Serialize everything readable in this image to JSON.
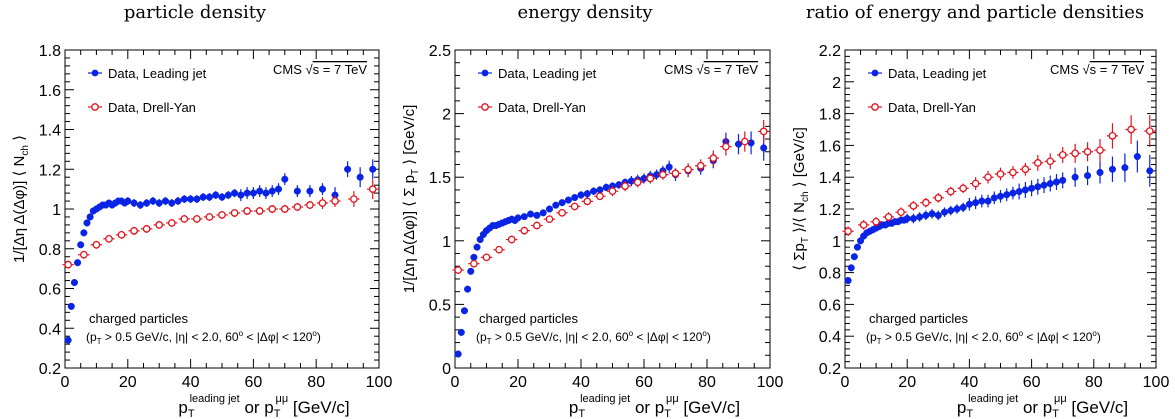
{
  "colors": {
    "leading_jet": "#0a24e6",
    "drell_yan": "#e0141e",
    "axis": "#000000"
  },
  "xlabel": {
    "main": "p",
    "sub1": "T",
    "sup1": "leading jet",
    "mid": " or p",
    "sub2": "T",
    "sup2": "μμ",
    "unit": " [GeV/c]"
  },
  "legend": {
    "leading_jet": "Data, Leading jet",
    "drell_yan": "Data, Drell-Yan"
  },
  "cms": {
    "text": "CMS",
    "sqrt": "√",
    "s_eq": "s = 7 TeV"
  },
  "note": {
    "line1": "charged particles",
    "p": "(p",
    "T": "T",
    "cut1": " > 0.5 GeV/c, |η| < 2.0, 60",
    "o1": "o",
    "cut2": " < |Δφ| < 120",
    "o2": "o",
    "close": ")"
  },
  "chart_data": [
    {
      "type": "scatter",
      "title": "particle density",
      "ylabel": "1/[Δη Δ(Δφ)] ⟨ N",
      "ylabel_sub": "ch",
      "ylabel_tail": " ⟩",
      "xlim": [
        0,
        100
      ],
      "ylim": [
        0.2,
        1.8
      ],
      "xticks": [
        0,
        20,
        40,
        60,
        80,
        100
      ],
      "yticks": [
        0.2,
        0.4,
        0.6,
        0.8,
        1,
        1.2,
        1.4,
        1.6,
        1.8
      ],
      "ytick_labels": [
        "0.2",
        "0.4",
        "0.6",
        "0.8",
        "1",
        "1.2",
        "1.4",
        "1.6",
        "1.8"
      ],
      "series": [
        {
          "name": "Data, Leading jet",
          "marker": "filled-circle",
          "x": [
            1,
            2,
            3,
            4,
            5,
            6,
            7,
            8,
            9,
            10,
            11,
            12,
            13,
            14,
            15,
            16,
            17,
            18,
            19,
            20,
            22,
            24,
            26,
            28,
            30,
            32,
            34,
            36,
            38,
            40,
            42,
            44,
            46,
            48,
            50,
            52,
            54,
            56,
            58,
            60,
            62,
            64,
            66,
            68,
            70,
            74,
            78,
            82,
            86,
            90,
            94,
            98
          ],
          "y": [
            0.34,
            0.51,
            0.63,
            0.73,
            0.82,
            0.88,
            0.93,
            0.96,
            0.99,
            1.0,
            1.01,
            1.02,
            1.02,
            1.03,
            1.02,
            1.03,
            1.04,
            1.04,
            1.03,
            1.04,
            1.03,
            1.02,
            1.03,
            1.04,
            1.03,
            1.04,
            1.03,
            1.04,
            1.05,
            1.05,
            1.05,
            1.06,
            1.06,
            1.07,
            1.06,
            1.07,
            1.08,
            1.07,
            1.08,
            1.08,
            1.09,
            1.08,
            1.09,
            1.1,
            1.15,
            1.09,
            1.09,
            1.1,
            1.07,
            1.2,
            1.16,
            1.2
          ],
          "err": [
            0.01,
            0.01,
            0.01,
            0.01,
            0.01,
            0.01,
            0.01,
            0.01,
            0.01,
            0.01,
            0.01,
            0.01,
            0.01,
            0.01,
            0.01,
            0.01,
            0.01,
            0.01,
            0.01,
            0.02,
            0.02,
            0.02,
            0.02,
            0.02,
            0.02,
            0.02,
            0.02,
            0.02,
            0.02,
            0.02,
            0.02,
            0.02,
            0.02,
            0.02,
            0.02,
            0.02,
            0.02,
            0.03,
            0.03,
            0.03,
            0.03,
            0.03,
            0.03,
            0.03,
            0.03,
            0.03,
            0.03,
            0.03,
            0.04,
            0.04,
            0.05,
            0.05
          ]
        },
        {
          "name": "Data, Drell-Yan",
          "marker": "open-cross",
          "x": [
            1,
            6,
            10,
            14,
            18,
            22,
            26,
            30,
            34,
            38,
            42,
            46,
            50,
            54,
            58,
            62,
            66,
            70,
            74,
            78,
            82,
            86,
            92,
            98
          ],
          "y": [
            0.72,
            0.77,
            0.82,
            0.85,
            0.87,
            0.89,
            0.9,
            0.92,
            0.93,
            0.95,
            0.95,
            0.96,
            0.97,
            0.98,
            0.99,
            0.99,
            1.0,
            1.0,
            1.01,
            1.02,
            1.03,
            1.04,
            1.05,
            1.1
          ],
          "err": [
            0.02,
            0.02,
            0.02,
            0.02,
            0.02,
            0.02,
            0.02,
            0.02,
            0.02,
            0.02,
            0.02,
            0.02,
            0.02,
            0.02,
            0.02,
            0.02,
            0.02,
            0.02,
            0.02,
            0.02,
            0.03,
            0.03,
            0.04,
            0.05
          ]
        }
      ]
    },
    {
      "type": "scatter",
      "title": "energy density",
      "ylabel": "1/[Δη Δ(Δφ)] ⟨ Σ p",
      "ylabel_sub": "T",
      "ylabel_tail": " ⟩ [GeV/c]",
      "xlim": [
        0,
        100
      ],
      "ylim": [
        0,
        2.5
      ],
      "xticks": [
        0,
        20,
        40,
        60,
        80,
        100
      ],
      "yticks": [
        0,
        0.5,
        1,
        1.5,
        2,
        2.5
      ],
      "ytick_labels": [
        "0",
        "0.5",
        "1",
        "1.5",
        "2",
        "2.5"
      ],
      "series": [
        {
          "name": "Data, Leading jet",
          "marker": "filled-circle",
          "x": [
            1,
            2,
            3,
            4,
            5,
            6,
            7,
            8,
            9,
            10,
            11,
            12,
            13,
            14,
            15,
            16,
            17,
            18,
            19,
            20,
            22,
            24,
            26,
            28,
            30,
            32,
            34,
            36,
            38,
            40,
            42,
            44,
            46,
            48,
            50,
            52,
            54,
            56,
            58,
            60,
            62,
            64,
            66,
            68,
            70,
            74,
            78,
            82,
            86,
            90,
            94,
            98
          ],
          "y": [
            0.11,
            0.28,
            0.45,
            0.62,
            0.76,
            0.87,
            0.95,
            1.01,
            1.05,
            1.08,
            1.1,
            1.12,
            1.12,
            1.13,
            1.14,
            1.15,
            1.16,
            1.17,
            1.16,
            1.18,
            1.19,
            1.21,
            1.2,
            1.22,
            1.25,
            1.28,
            1.3,
            1.32,
            1.34,
            1.36,
            1.37,
            1.39,
            1.4,
            1.42,
            1.43,
            1.44,
            1.46,
            1.47,
            1.48,
            1.49,
            1.51,
            1.52,
            1.55,
            1.58,
            1.52,
            1.55,
            1.57,
            1.63,
            1.78,
            1.76,
            1.77,
            1.73
          ],
          "err": [
            0.01,
            0.01,
            0.01,
            0.01,
            0.01,
            0.01,
            0.01,
            0.01,
            0.01,
            0.01,
            0.01,
            0.01,
            0.01,
            0.01,
            0.01,
            0.01,
            0.01,
            0.01,
            0.02,
            0.02,
            0.02,
            0.02,
            0.02,
            0.02,
            0.02,
            0.02,
            0.02,
            0.02,
            0.02,
            0.03,
            0.03,
            0.03,
            0.03,
            0.03,
            0.03,
            0.03,
            0.03,
            0.04,
            0.04,
            0.04,
            0.04,
            0.04,
            0.04,
            0.05,
            0.05,
            0.05,
            0.05,
            0.06,
            0.07,
            0.08,
            0.09,
            0.1
          ]
        },
        {
          "name": "Data, Drell-Yan",
          "marker": "open-cross",
          "x": [
            1,
            6,
            10,
            14,
            18,
            22,
            26,
            30,
            34,
            38,
            42,
            46,
            50,
            54,
            58,
            62,
            66,
            70,
            74,
            78,
            82,
            86,
            92,
            98
          ],
          "y": [
            0.77,
            0.82,
            0.87,
            0.93,
            1.01,
            1.08,
            1.12,
            1.17,
            1.22,
            1.27,
            1.31,
            1.35,
            1.39,
            1.43,
            1.46,
            1.49,
            1.52,
            1.53,
            1.56,
            1.59,
            1.65,
            1.74,
            1.78,
            1.86
          ],
          "err": [
            0.03,
            0.03,
            0.03,
            0.03,
            0.03,
            0.03,
            0.03,
            0.03,
            0.03,
            0.03,
            0.03,
            0.03,
            0.04,
            0.04,
            0.04,
            0.04,
            0.04,
            0.04,
            0.05,
            0.05,
            0.06,
            0.07,
            0.08,
            0.09
          ]
        }
      ]
    },
    {
      "type": "scatter",
      "title": "ratio of energy and particle densities",
      "ylabel": "⟨ Σp",
      "ylabel_sub": "T",
      "ylabel_tail": " ⟩/⟨ N",
      "ylabel_sub2": "ch",
      "ylabel_tail2": " ⟩ [GeV/c]",
      "xlim": [
        0,
        100
      ],
      "ylim": [
        0.2,
        2.2
      ],
      "xticks": [
        0,
        20,
        40,
        60,
        80,
        100
      ],
      "yticks": [
        0.2,
        0.4,
        0.6,
        0.8,
        1,
        1.2,
        1.4,
        1.6,
        1.8,
        2,
        2.2
      ],
      "ytick_labels": [
        "0.2",
        "0.4",
        "0.6",
        "0.8",
        "1",
        "1.2",
        "1.4",
        "1.6",
        "1.8",
        "2",
        "2.2"
      ],
      "series": [
        {
          "name": "Data, Leading jet",
          "marker": "filled-circle",
          "x": [
            1,
            2,
            3,
            4,
            5,
            6,
            7,
            8,
            9,
            10,
            11,
            12,
            13,
            14,
            15,
            16,
            17,
            18,
            19,
            20,
            22,
            24,
            26,
            28,
            30,
            32,
            34,
            36,
            38,
            40,
            42,
            44,
            46,
            48,
            50,
            52,
            54,
            56,
            58,
            60,
            62,
            64,
            66,
            68,
            70,
            74,
            78,
            82,
            86,
            90,
            94,
            98
          ],
          "y": [
            0.75,
            0.83,
            0.9,
            0.96,
            1.0,
            1.03,
            1.05,
            1.06,
            1.07,
            1.08,
            1.09,
            1.1,
            1.1,
            1.11,
            1.11,
            1.12,
            1.12,
            1.13,
            1.13,
            1.14,
            1.14,
            1.15,
            1.16,
            1.17,
            1.16,
            1.18,
            1.19,
            1.2,
            1.21,
            1.23,
            1.24,
            1.25,
            1.25,
            1.27,
            1.28,
            1.29,
            1.3,
            1.31,
            1.32,
            1.33,
            1.34,
            1.35,
            1.36,
            1.37,
            1.38,
            1.4,
            1.41,
            1.43,
            1.45,
            1.46,
            1.53,
            1.44
          ],
          "err": [
            0.02,
            0.02,
            0.02,
            0.02,
            0.02,
            0.02,
            0.02,
            0.02,
            0.02,
            0.02,
            0.02,
            0.02,
            0.02,
            0.02,
            0.02,
            0.02,
            0.02,
            0.02,
            0.02,
            0.03,
            0.03,
            0.03,
            0.03,
            0.03,
            0.03,
            0.03,
            0.03,
            0.03,
            0.03,
            0.04,
            0.04,
            0.04,
            0.04,
            0.04,
            0.04,
            0.04,
            0.04,
            0.05,
            0.05,
            0.05,
            0.05,
            0.05,
            0.05,
            0.05,
            0.05,
            0.06,
            0.06,
            0.07,
            0.08,
            0.09,
            0.1,
            0.1
          ]
        },
        {
          "name": "Data, Drell-Yan",
          "marker": "open-cross",
          "x": [
            1,
            6,
            10,
            14,
            18,
            22,
            26,
            30,
            34,
            38,
            42,
            46,
            50,
            54,
            58,
            62,
            66,
            70,
            74,
            78,
            82,
            86,
            92,
            98
          ],
          "y": [
            1.06,
            1.1,
            1.12,
            1.15,
            1.18,
            1.22,
            1.24,
            1.27,
            1.31,
            1.33,
            1.36,
            1.4,
            1.42,
            1.43,
            1.45,
            1.49,
            1.5,
            1.54,
            1.55,
            1.56,
            1.57,
            1.66,
            1.7,
            1.69
          ],
          "err": [
            0.03,
            0.03,
            0.03,
            0.03,
            0.03,
            0.03,
            0.03,
            0.03,
            0.03,
            0.03,
            0.04,
            0.04,
            0.04,
            0.04,
            0.04,
            0.05,
            0.05,
            0.05,
            0.06,
            0.06,
            0.07,
            0.08,
            0.09,
            0.1
          ]
        }
      ]
    }
  ]
}
